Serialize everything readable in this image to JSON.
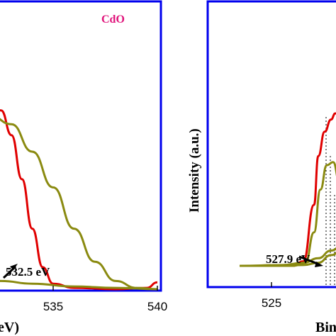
{
  "chart_data": [
    {
      "type": "line",
      "panel": "left",
      "sample_label": "CdO",
      "xlabel_visible": "eV)",
      "x_ticks": [
        535,
        540
      ],
      "annotations": [
        {
          "text": "532.5 eV",
          "x": 532.5
        }
      ],
      "series": [
        {
          "color": "#e00000",
          "x": [
            531,
            532,
            532.5,
            533,
            533.5,
            534,
            534.5,
            535,
            536,
            538,
            539.5,
            540
          ],
          "y": [
            0.7,
            0.68,
            0.65,
            0.56,
            0.4,
            0.22,
            0.08,
            0.02,
            0.005,
            0.0,
            0.005,
            0.025
          ]
        },
        {
          "color": "#8a8a10",
          "x": [
            531,
            532,
            533,
            534,
            535,
            536,
            537,
            538,
            539,
            540
          ],
          "y": [
            0.64,
            0.63,
            0.6,
            0.5,
            0.37,
            0.22,
            0.1,
            0.03,
            0.005,
            0.0
          ]
        },
        {
          "color": "#8a8a10",
          "x": [
            531,
            532.5,
            534,
            536,
            538,
            540
          ],
          "y": [
            0.04,
            0.03,
            0.02,
            0.01,
            0.005,
            0.0
          ]
        }
      ]
    },
    {
      "type": "line",
      "panel": "right",
      "ylabel": "Intensity (a.u.)",
      "xlabel_visible": "Bin",
      "x_ticks": [
        525
      ],
      "annotations": [
        {
          "text": "527.9 eV",
          "x": 527.9
        }
      ],
      "series": [
        {
          "color": "#e00000",
          "x": [
            523.5,
            526,
            526.5,
            527,
            527.2,
            527.5,
            527.8,
            528,
            528.3
          ],
          "y": [
            0.0,
            0.0,
            0.03,
            0.4,
            0.72,
            0.88,
            0.96,
            1.0,
            1.0
          ]
        },
        {
          "color": "#8a8a10",
          "x": [
            523.5,
            526,
            526.6,
            527,
            527.3,
            527.6,
            527.9,
            528.2,
            528.3
          ],
          "y": [
            0.0,
            0.0,
            0.02,
            0.22,
            0.5,
            0.66,
            0.68,
            0.55,
            0.5
          ]
        },
        {
          "color": "#8a8a10",
          "x": [
            523.5,
            525.5,
            526.5,
            527.2,
            527.8,
            528.3
          ],
          "y": [
            0.0,
            0.005,
            0.02,
            0.05,
            0.1,
            0.13
          ]
        },
        {
          "color": "#8a8a10",
          "x": [
            523.5,
            525.5,
            526.5,
            527.2,
            527.8,
            528.3
          ],
          "y": [
            0.0,
            0.0,
            0.005,
            0.02,
            0.07,
            0.1
          ]
        }
      ]
    }
  ]
}
